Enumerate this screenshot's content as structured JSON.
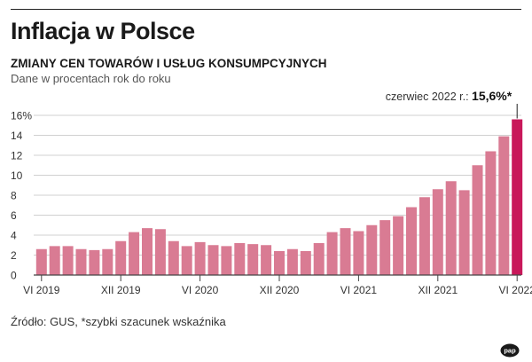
{
  "header": {
    "title": "Inflacja w Polsce",
    "subtitle": "ZMIANY CEN TOWARÓW I USŁUG KONSUMPCYJNYCH",
    "note": "Dane w procentach rok do roku"
  },
  "footer": {
    "source": "Źródło: GUS, *szybki szacunek wskaźnika",
    "logo_text": "pap"
  },
  "chart_data": {
    "type": "bar",
    "ylim": [
      0,
      16
    ],
    "yticks": [
      "0",
      "2",
      "4",
      "6",
      "8",
      "10",
      "12",
      "14",
      "16%"
    ],
    "ytick_values": [
      0,
      2,
      4,
      6,
      8,
      10,
      12,
      14,
      16
    ],
    "grid": true,
    "categories": [
      "VI 2019",
      "VII 2019",
      "VIII 2019",
      "IX 2019",
      "X 2019",
      "XI 2019",
      "XII 2019",
      "I 2020",
      "II 2020",
      "III 2020",
      "IV 2020",
      "V 2020",
      "VI 2020",
      "VII 2020",
      "VIII 2020",
      "IX 2020",
      "X 2020",
      "XI 2020",
      "XII 2020",
      "I 2021",
      "II 2021",
      "III 2021",
      "IV 2021",
      "V 2021",
      "VI 2021",
      "VII 2021",
      "VIII 2021",
      "IX 2021",
      "X 2021",
      "XI 2021",
      "XII 2021",
      "I 2022",
      "II 2022",
      "III 2022",
      "IV 2022",
      "V 2022",
      "VI 2022"
    ],
    "values": [
      2.6,
      2.9,
      2.9,
      2.6,
      2.5,
      2.6,
      3.4,
      4.3,
      4.7,
      4.6,
      3.4,
      2.9,
      3.3,
      3.0,
      2.9,
      3.2,
      3.1,
      3.0,
      2.4,
      2.6,
      2.4,
      3.2,
      4.3,
      4.7,
      4.4,
      5.0,
      5.5,
      5.9,
      6.8,
      7.8,
      8.6,
      9.4,
      8.5,
      11.0,
      12.4,
      13.9,
      15.6
    ],
    "xtick_labels": [
      {
        "index": 0,
        "label": "VI 2019"
      },
      {
        "index": 6,
        "label": "XII 2019"
      },
      {
        "index": 12,
        "label": "VI 2020"
      },
      {
        "index": 18,
        "label": "XII 2020"
      },
      {
        "index": 24,
        "label": "VI 2021"
      },
      {
        "index": 30,
        "label": "XII 2021"
      },
      {
        "index": 36,
        "label": "VI 2022"
      }
    ],
    "annotation": {
      "index": 36,
      "prefix": "czerwiec 2022 r.: ",
      "value": "15,6%*"
    },
    "colors": {
      "bar": "#d97b93",
      "highlight": "#c8185a",
      "grid": "#d0d0d0",
      "axis": "#444444"
    }
  }
}
